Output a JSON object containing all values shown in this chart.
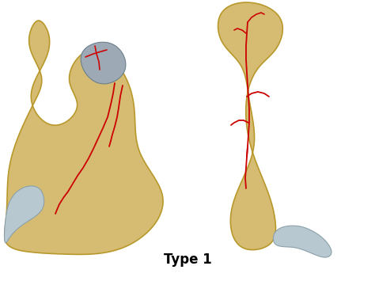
{
  "title": "Type 1",
  "title_fontsize": 12,
  "title_fontweight": "bold",
  "bg_color": "#ffffff",
  "bone_color": "#d6bc72",
  "bone_edge": "#b8982a",
  "bone_shadow": "#c4a84e",
  "crack_color": "#cc0000",
  "cartilage_color": "#9daab5",
  "cartilage_edge": "#6b7f8c",
  "tooth_color": "#b8c8d0",
  "tooth_edge": "#8aa0aa"
}
